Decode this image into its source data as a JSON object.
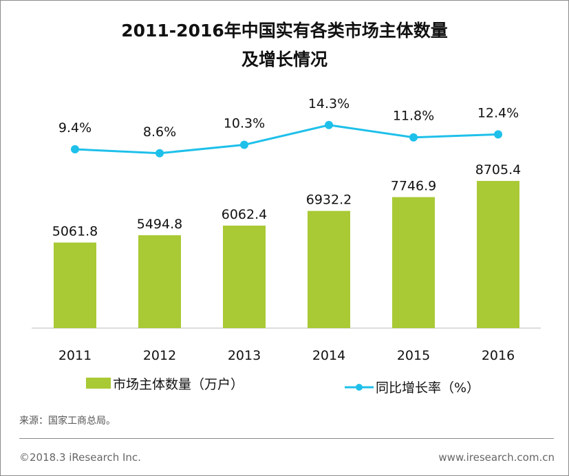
{
  "chart_data": {
    "type": "bar+line",
    "title_line1": "2011-2016年中国实有各类市场主体数量",
    "title_line2": "及增长情况",
    "categories": [
      "2011",
      "2012",
      "2013",
      "2014",
      "2015",
      "2016"
    ],
    "series": [
      {
        "name": "市场主体数量（万户）",
        "type": "bar",
        "color": "#a9c935",
        "values": [
          5061.8,
          5494.8,
          6062.4,
          6932.2,
          7746.9,
          8705.4
        ],
        "labels": [
          "5061.8",
          "5494.8",
          "6062.4",
          "6932.2",
          "7746.9",
          "8705.4"
        ]
      },
      {
        "name": "同比增长率（%）",
        "type": "line",
        "color": "#1ec0ea",
        "values": [
          9.4,
          8.6,
          10.3,
          14.3,
          11.8,
          12.4
        ],
        "labels": [
          "9.4%",
          "8.6%",
          "10.3%",
          "14.3%",
          "11.8%",
          "12.4%"
        ]
      }
    ],
    "legend_position": "bottom",
    "grid": false
  },
  "source": "来源：国家工商总局。",
  "copyright": "©2018.3 iResearch Inc.",
  "website": "www.iresearch.com.cn"
}
